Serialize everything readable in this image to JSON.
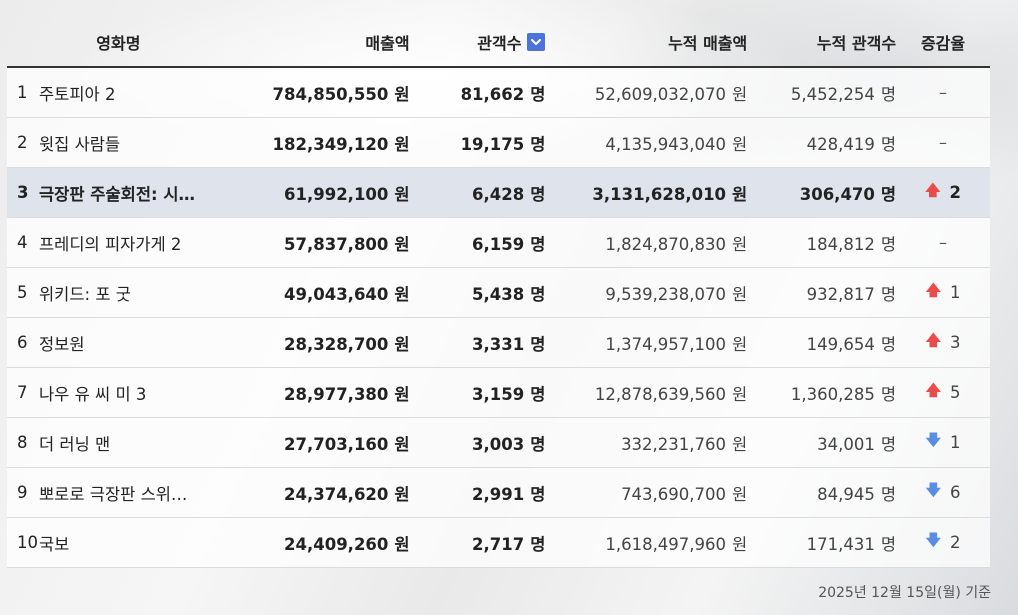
{
  "headers": {
    "title": "영화명",
    "sales": "매출액",
    "audience": "관객수",
    "cum_sales": "누적 매출액",
    "cum_audience": "누적 관객수",
    "change": "증감율"
  },
  "units": {
    "won": "원",
    "people": "명"
  },
  "rows": [
    {
      "rank": "1",
      "title": "주토피아 2",
      "sales": "784,850,550",
      "audience": "81,662",
      "cum_sales": "52,609,032,070",
      "cum_audience": "5,452,254",
      "change_dir": "none",
      "change": "–"
    },
    {
      "rank": "2",
      "title": "윗집 사람들",
      "sales": "182,349,120",
      "audience": "19,175",
      "cum_sales": "4,135,943,040",
      "cum_audience": "428,419",
      "change_dir": "none",
      "change": "–"
    },
    {
      "rank": "3",
      "title": "극장판 주술회전: 시…",
      "sales": "61,992,100",
      "audience": "6,428",
      "cum_sales": "3,131,628,010",
      "cum_audience": "306,470",
      "change_dir": "up",
      "change": "2"
    },
    {
      "rank": "4",
      "title": "프레디의 피자가게 2",
      "sales": "57,837,800",
      "audience": "6,159",
      "cum_sales": "1,824,870,830",
      "cum_audience": "184,812",
      "change_dir": "none",
      "change": "–"
    },
    {
      "rank": "5",
      "title": "위키드: 포 굿",
      "sales": "49,043,640",
      "audience": "5,438",
      "cum_sales": "9,539,238,070",
      "cum_audience": "932,817",
      "change_dir": "up",
      "change": "1"
    },
    {
      "rank": "6",
      "title": "정보원",
      "sales": "28,328,700",
      "audience": "3,331",
      "cum_sales": "1,374,957,100",
      "cum_audience": "149,654",
      "change_dir": "up",
      "change": "3"
    },
    {
      "rank": "7",
      "title": "나우 유 씨 미 3",
      "sales": "28,977,380",
      "audience": "3,159",
      "cum_sales": "12,878,639,560",
      "cum_audience": "1,360,285",
      "change_dir": "up",
      "change": "5"
    },
    {
      "rank": "8",
      "title": "더 러닝 맨",
      "sales": "27,703,160",
      "audience": "3,003",
      "cum_sales": "332,231,760",
      "cum_audience": "34,001",
      "change_dir": "down",
      "change": "1"
    },
    {
      "rank": "9",
      "title": "뽀로로 극장판 스위…",
      "sales": "24,374,620",
      "audience": "2,991",
      "cum_sales": "743,690,700",
      "cum_audience": "84,945",
      "change_dir": "down",
      "change": "6"
    },
    {
      "rank": "10",
      "title": "국보",
      "sales": "24,409,260",
      "audience": "2,717",
      "cum_sales": "1,618,497,960",
      "cum_audience": "171,431",
      "change_dir": "down",
      "change": "2"
    }
  ],
  "footnote": "2025년 12월 15일(월) 기준",
  "colors": {
    "highlight_row": "#dfe3ec",
    "up": "#ea4b4b",
    "down": "#5b8de4",
    "sort_button": "#4a74d9"
  },
  "icons": {
    "sort": "chevron-down-icon",
    "up": "arrow-up-icon",
    "down": "arrow-down-icon"
  }
}
